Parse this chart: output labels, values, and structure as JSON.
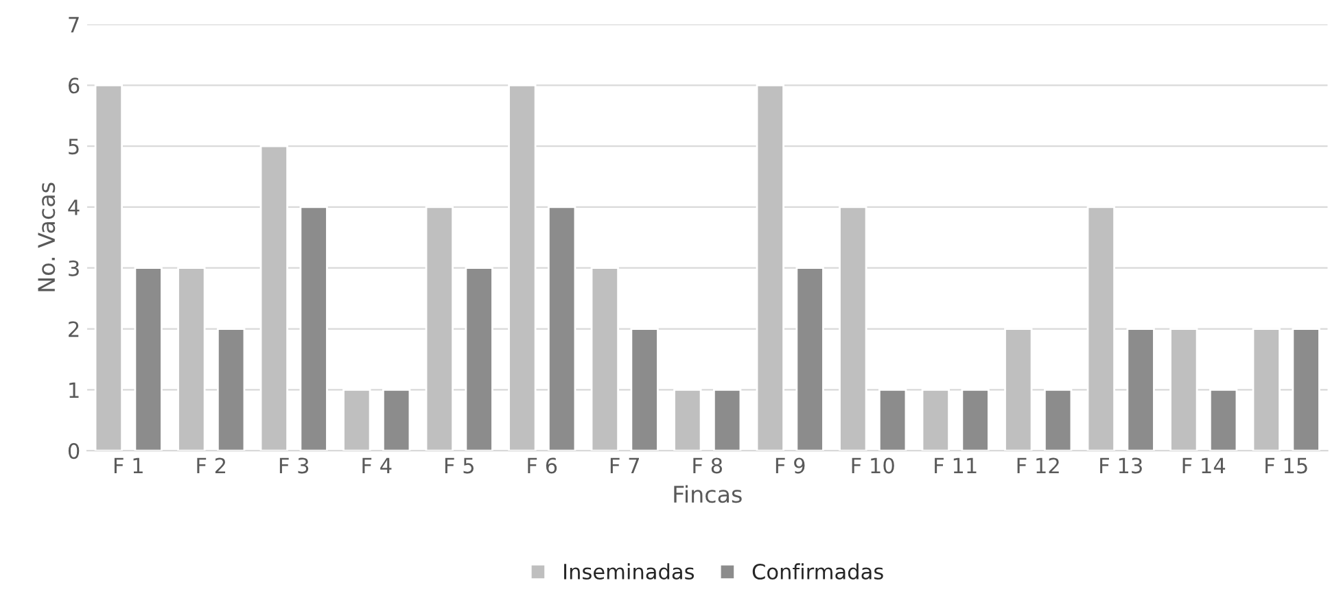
{
  "chart_data": {
    "type": "bar",
    "xlabel": "Fincas",
    "ylabel": "No. Vacas",
    "categories": [
      "F 1",
      "F 2",
      "F 3",
      "F 4",
      "F 5",
      "F 6",
      "F 7",
      "F 8",
      "F 9",
      "F 10",
      "F 11",
      "F 12",
      "F 13",
      "F 14",
      "F 15"
    ],
    "series": [
      {
        "name": "Inseminadas",
        "color": "#bfbfbf",
        "values": [
          6,
          3,
          5,
          1,
          4,
          6,
          3,
          1,
          6,
          4,
          1,
          2,
          4,
          2,
          2
        ]
      },
      {
        "name": "Confirmadas",
        "color": "#8c8c8c",
        "values": [
          3,
          2,
          4,
          1,
          3,
          4,
          2,
          1,
          3,
          1,
          1,
          1,
          2,
          1,
          2
        ]
      }
    ],
    "ylim": [
      0,
      7
    ],
    "yticks": [
      0,
      1,
      2,
      3,
      4,
      5,
      6,
      7
    ],
    "grid": "y",
    "legend": "bottom"
  }
}
